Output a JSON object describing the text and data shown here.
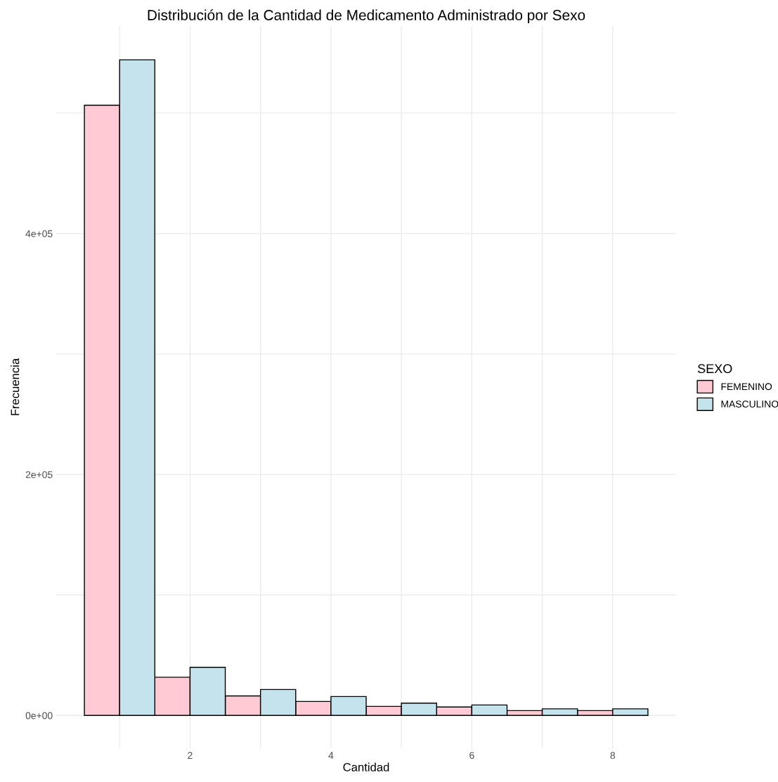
{
  "chart_data": {
    "type": "bar",
    "title": "Distribución de la Cantidad de Medicamento Administrado por Sexo",
    "xlabel": "Cantidad",
    "ylabel": "Frecuencia",
    "legend_title": "SEXO",
    "legend": "right",
    "x": [
      1,
      2,
      3,
      4,
      5,
      6,
      7,
      8
    ],
    "series": [
      {
        "name": "FEMENINO",
        "color": "#ffcad4",
        "values": [
          506500,
          31700,
          16200,
          11600,
          7500,
          7000,
          4000,
          4000
        ]
      },
      {
        "name": "MASCULINO",
        "color": "#c5e3ec",
        "values": [
          544200,
          40000,
          21500,
          15700,
          10200,
          8700,
          5500,
          5500
        ]
      }
    ],
    "xlim": [
      0.1,
      8.9
    ],
    "ylim": [
      -27250,
      572250
    ],
    "xticks": [
      {
        "value": 1,
        "label": null
      },
      2,
      {
        "value": 3,
        "label": null
      },
      4,
      {
        "value": 5,
        "label": null
      },
      6,
      {
        "value": 7,
        "label": null
      },
      8
    ],
    "yticks": [
      {
        "value": 0,
        "label": "0e+00"
      },
      {
        "value": 100000,
        "label": null
      },
      {
        "value": 200000,
        "label": "2e+05"
      },
      {
        "value": 300000,
        "label": null
      },
      {
        "value": 400000,
        "label": "4e+05"
      },
      {
        "value": 500000,
        "label": null
      }
    ],
    "grid": true
  }
}
